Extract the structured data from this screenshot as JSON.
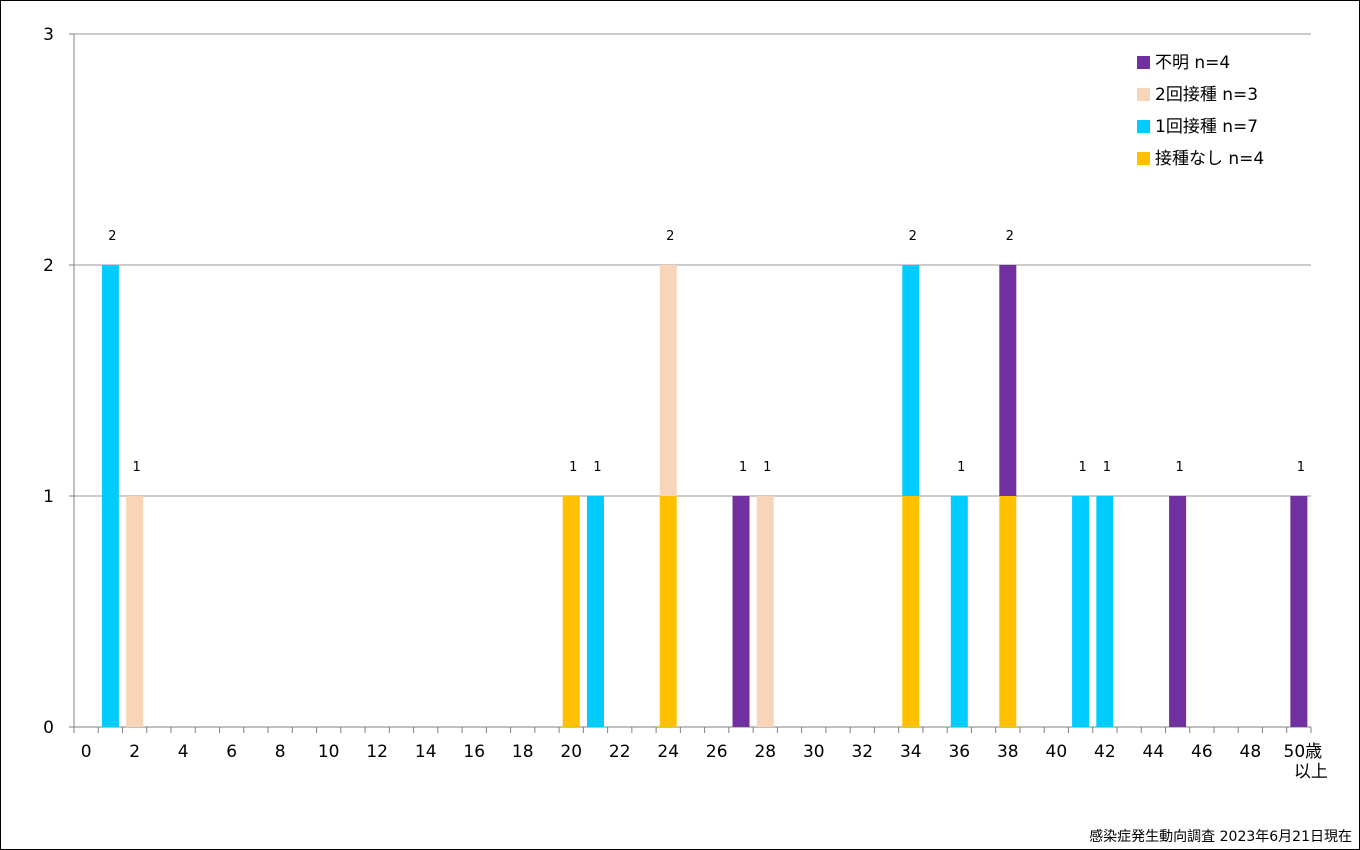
{
  "chart_data": {
    "type": "bar",
    "stacked": true,
    "x": [
      0,
      1,
      2,
      3,
      4,
      5,
      6,
      7,
      8,
      9,
      10,
      11,
      12,
      13,
      14,
      15,
      16,
      17,
      18,
      19,
      20,
      21,
      22,
      23,
      24,
      25,
      26,
      27,
      28,
      29,
      30,
      31,
      32,
      33,
      34,
      35,
      36,
      37,
      38,
      39,
      40,
      41,
      42,
      43,
      44,
      45,
      46,
      47,
      48,
      49,
      50
    ],
    "x_tick_labels": [
      "0",
      "2",
      "4",
      "6",
      "8",
      "10",
      "12",
      "14",
      "16",
      "18",
      "20",
      "22",
      "24",
      "26",
      "28",
      "30",
      "32",
      "34",
      "36",
      "38",
      "40",
      "42",
      "44",
      "46",
      "48",
      "50歳以上"
    ],
    "x_tick_values": [
      0,
      2,
      4,
      6,
      8,
      10,
      12,
      14,
      16,
      18,
      20,
      22,
      24,
      26,
      28,
      30,
      32,
      34,
      36,
      38,
      40,
      42,
      44,
      46,
      48,
      50
    ],
    "last_tick_label_line1": "50歳",
    "last_tick_label_line2": "以上",
    "ylim": [
      0,
      3
    ],
    "y_ticks": [
      "0",
      "1",
      "2",
      "3"
    ],
    "grid": "horizontal",
    "legend_position": "top-right",
    "series": [
      {
        "name": "接種なし n=4",
        "color": "#FFC000",
        "values": {
          "20": 1,
          "24": 1,
          "34": 1,
          "38": 1
        }
      },
      {
        "name": "1回接種 n=7",
        "color": "#00CCFF",
        "values": {
          "1": 2,
          "21": 1,
          "34": 1,
          "36": 1,
          "41": 1,
          "42": 1
        }
      },
      {
        "name": "2回接種 n=3",
        "color": "#F8D5B8",
        "values": {
          "2": 1,
          "24": 1,
          "28": 1
        }
      },
      {
        "name": "不明 n=4",
        "color": "#7030A0",
        "values": {
          "27": 1,
          "38": 1,
          "45": 1,
          "50": 1
        }
      }
    ],
    "legend_order": [
      "不明 n=4",
      "2回接種 n=3",
      "1回接種 n=7",
      "接種なし n=4"
    ],
    "totals": {
      "1": 2,
      "2": 1,
      "20": 1,
      "21": 1,
      "24": 2,
      "27": 1,
      "28": 1,
      "34": 2,
      "36": 1,
      "38": 2,
      "41": 1,
      "42": 1,
      "45": 1,
      "50": 1
    },
    "source_note": "感染症発生動向調査 2023年6月21日現在"
  }
}
